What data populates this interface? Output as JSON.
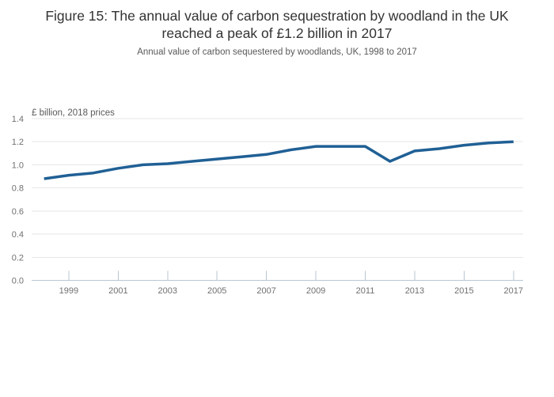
{
  "header": {
    "title": "Figure 15: The annual value of carbon sequestration by woodland in the UK reached a peak of £1.2 billion in 2017",
    "subtitle": "Annual value of carbon sequestered by woodlands, UK, 1998 to 2017"
  },
  "chart_data": {
    "type": "line",
    "title": "Figure 15: The annual value of carbon sequestration by woodland in the UK reached a peak of £1.2 billion in 2017",
    "subtitle": "Annual value of carbon sequestered by woodlands, UK, 1998 to 2017",
    "unit_label": "£ billion, 2018 prices",
    "x": [
      1998,
      1999,
      2000,
      2001,
      2002,
      2003,
      2004,
      2005,
      2006,
      2007,
      2008,
      2009,
      2010,
      2011,
      2012,
      2013,
      2014,
      2015,
      2016,
      2017
    ],
    "series": [
      {
        "name": "Annual value of carbon sequestered by woodlands",
        "values": [
          0.88,
          0.91,
          0.93,
          0.97,
          1.0,
          1.01,
          1.03,
          1.05,
          1.07,
          1.09,
          1.13,
          1.16,
          1.16,
          1.16,
          1.03,
          1.12,
          1.14,
          1.17,
          1.19,
          1.2
        ]
      }
    ],
    "x_tick_labels": [
      "1999",
      "2001",
      "2003",
      "2005",
      "2007",
      "2009",
      "2011",
      "2013",
      "2015",
      "2017"
    ],
    "y_tick_labels": [
      "0.0",
      "0.2",
      "0.4",
      "0.6",
      "0.8",
      "1.0",
      "1.2",
      "1.4"
    ],
    "ylim": [
      0,
      1.4
    ],
    "grid": true,
    "legend": "none",
    "colors": {
      "line": "#206095",
      "gridline": "#e6e6e6",
      "axis": "#b9c6d2",
      "tick_label": "#707070",
      "unit_label": "#595959"
    }
  }
}
